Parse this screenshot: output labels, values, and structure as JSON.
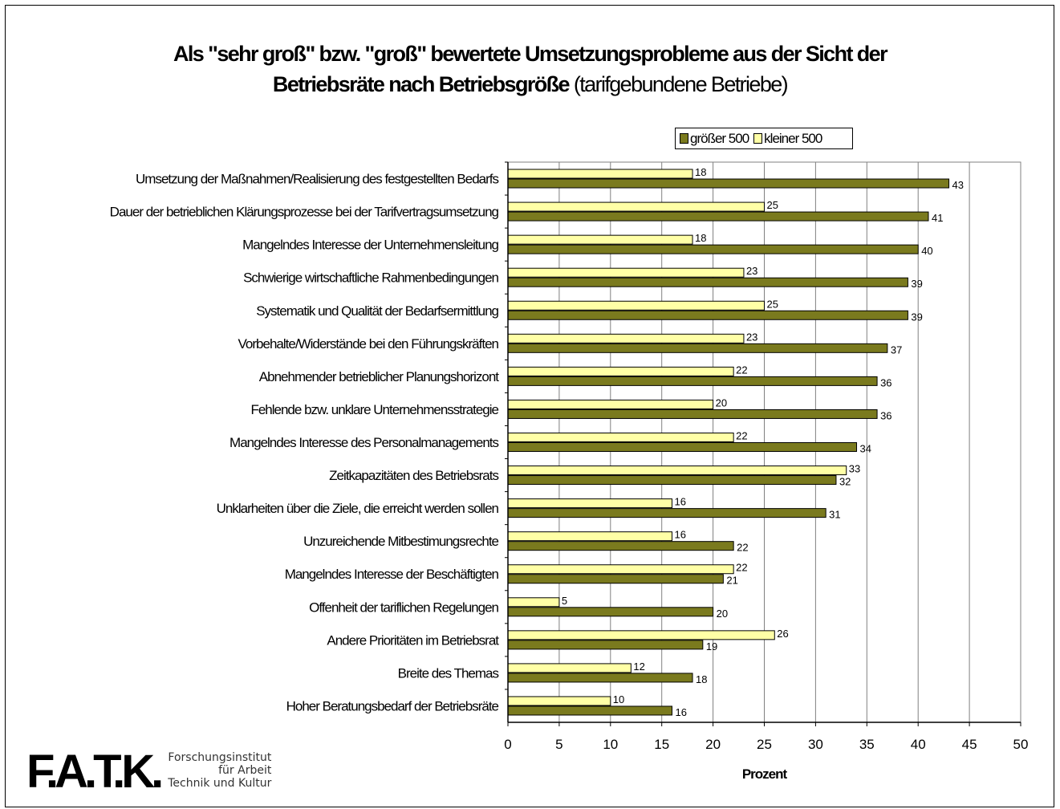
{
  "title": {
    "line1": "Als \"sehr groß\" bzw. \"groß\" bewertete Umsetzungsprobleme aus der Sicht der",
    "line2_bold": "Betriebsräte nach Betriebsgröße",
    "line2_normal": " (tarifgebundene Betriebe)"
  },
  "logo": {
    "mark": "F.A.T.K.",
    "line1": "Forschungsinstitut",
    "line2": "für Arbeit",
    "line3": "Technik und Kultur"
  },
  "colors": {
    "large": "#7a7a1e",
    "small": "#ffffa6",
    "grid": "#808080"
  },
  "chart_data": {
    "type": "bar",
    "orientation": "horizontal",
    "xlabel": "Prozent",
    "xlim": [
      0,
      50
    ],
    "xticks": [
      0,
      5,
      10,
      15,
      20,
      25,
      30,
      35,
      40,
      45,
      50
    ],
    "grid": true,
    "legend_position": "top-right",
    "categories": [
      "Umsetzung der Maßnahmen/Realisierung des festgestellten Bedarfs",
      "Dauer der betrieblichen Klärungsprozesse bei der Tarifvertragsumsetzung",
      "Mangelndes Interesse der Unternehmensleitung",
      "Schwierige wirtschaftliche Rahmenbedingungen",
      "Systematik und Qualität der Bedarfsermittlung",
      "Vorbehalte/Widerstände bei den Führungskräften",
      "Abnehmender betrieblicher Planungshorizont",
      "Fehlende bzw. unklare Unternehmensstrategie",
      "Mangelndes Interesse des Personalmanagements",
      "Zeitkapazitäten des Betriebsrats",
      "Unklarheiten über die Ziele, die erreicht werden sollen",
      "Unzureichende Mitbestimungsrechte",
      "Mangelndes Interesse der Beschäftigten",
      "Offenheit der tariflichen Regelungen",
      "Andere Prioritäten im Betriebsrat",
      "Breite des Themas",
      "Hoher Beratungsbedarf der Betriebsräte"
    ],
    "series": [
      {
        "name": "größer 500",
        "values": [
          43,
          41,
          40,
          39,
          39,
          37,
          36,
          36,
          34,
          32,
          31,
          22,
          21,
          20,
          19,
          18,
          16
        ]
      },
      {
        "name": "kleiner 500",
        "values": [
          18,
          25,
          18,
          23,
          25,
          23,
          22,
          20,
          22,
          33,
          16,
          16,
          22,
          5,
          26,
          12,
          10
        ]
      }
    ]
  }
}
